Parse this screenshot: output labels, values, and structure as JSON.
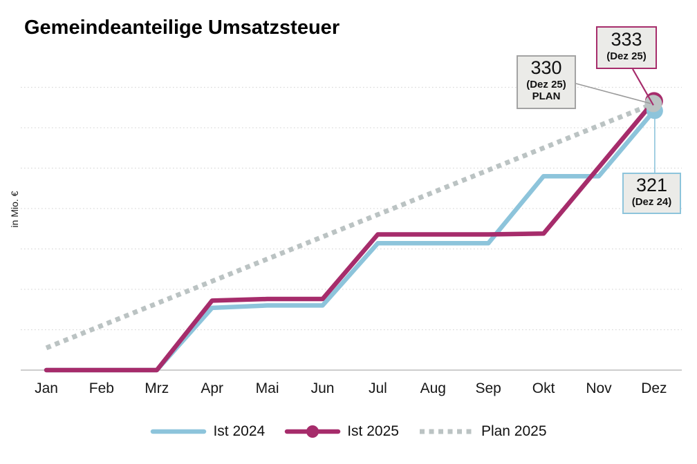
{
  "title": "Gemeindeanteilige Umsatzsteuer",
  "chart_data": {
    "type": "line",
    "title": "Gemeindeanteilige Umsatzsteuer",
    "xlabel": "",
    "ylabel": "in Mio. €",
    "categories": [
      "Jan",
      "Feb",
      "Mrz",
      "Apr",
      "Mai",
      "Jun",
      "Jul",
      "Aug",
      "Sep",
      "Okt",
      "Nov",
      "Dez"
    ],
    "series": [
      {
        "name": "Ist 2024",
        "color": "#8DC4DB",
        "dash": "solid",
        "values": [
          0,
          0,
          0,
          77,
          80,
          80,
          157,
          157,
          157,
          240,
          240,
          321
        ]
      },
      {
        "name": "Ist 2025",
        "color": "#A62C6B",
        "dash": "solid",
        "values": [
          0,
          0,
          0,
          86,
          88,
          88,
          168,
          168,
          168,
          169,
          251,
          333
        ]
      },
      {
        "name": "Plan 2025",
        "color": "#BBC3C3",
        "dash": "dotted",
        "values": [
          27.5,
          55,
          82.5,
          110,
          137.5,
          165,
          192.5,
          220,
          247.5,
          275,
          302.5,
          330
        ]
      }
    ],
    "ylim": [
      0,
      380
    ],
    "grid_step": 50,
    "grid_max": 350,
    "grid": "horizontal-dotted",
    "legend_position": "bottom"
  },
  "annotations": {
    "plan": {
      "value": "330",
      "line1": "(Dez 25)",
      "line2": "PLAN",
      "border": "#A3A3A3"
    },
    "ist2025": {
      "value": "333",
      "line1": "(Dez 25)",
      "border": "#A62C6B"
    },
    "ist2024": {
      "value": "321",
      "line1": "(Dez 24)",
      "border": "#8DC4DB"
    }
  },
  "colors": {
    "grid": "#D9D9D9",
    "axis": "#C6C6C6",
    "box_fill": "#EBEBE8",
    "connector_gray": "#9B9B9B",
    "text": "#111111"
  }
}
